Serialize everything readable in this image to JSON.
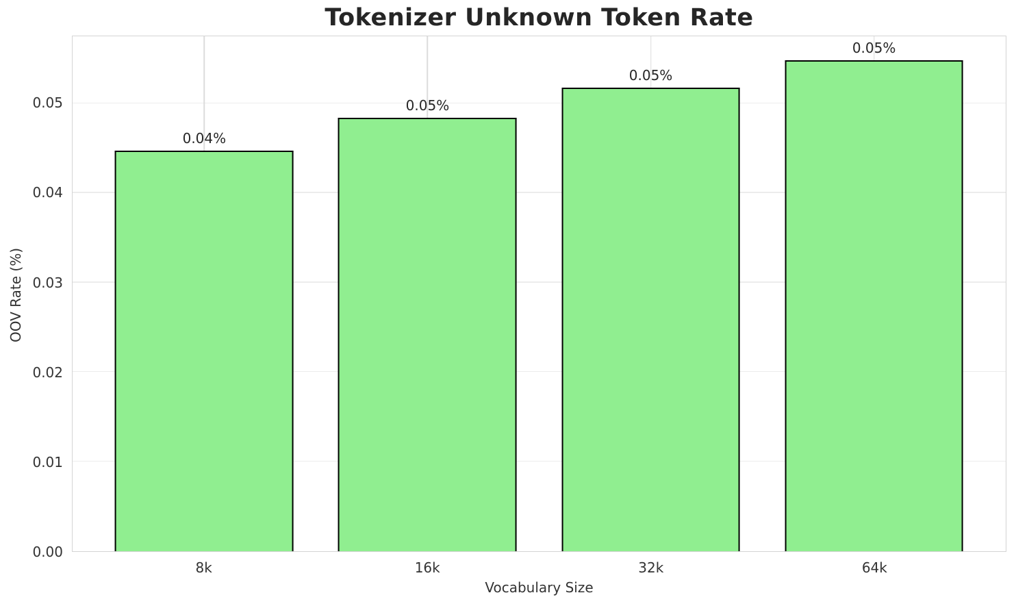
{
  "chart_data": {
    "type": "bar",
    "title": "Tokenizer Unknown Token Rate",
    "xlabel": "Vocabulary Size",
    "ylabel": "OOV Rate (%)",
    "categories": [
      "8k",
      "16k",
      "32k",
      "64k"
    ],
    "values": [
      0.0447,
      0.0484,
      0.0518,
      0.0548
    ],
    "bar_value_labels": [
      "0.04%",
      "0.05%",
      "0.05%",
      "0.05%"
    ],
    "y_tick_labels": [
      "0.00",
      "0.01",
      "0.02",
      "0.03",
      "0.04",
      "0.05"
    ],
    "y_tick_values": [
      0,
      0.01,
      0.02,
      0.03,
      0.04,
      0.05
    ],
    "ylim": [
      0,
      0.0575
    ],
    "grid": true,
    "legend": false,
    "bar_color": "#90EE90",
    "bar_edge_color": "#000000",
    "grid_color": "#ececec",
    "spine_color": "#d4d4d4",
    "text_color": "#262626"
  }
}
